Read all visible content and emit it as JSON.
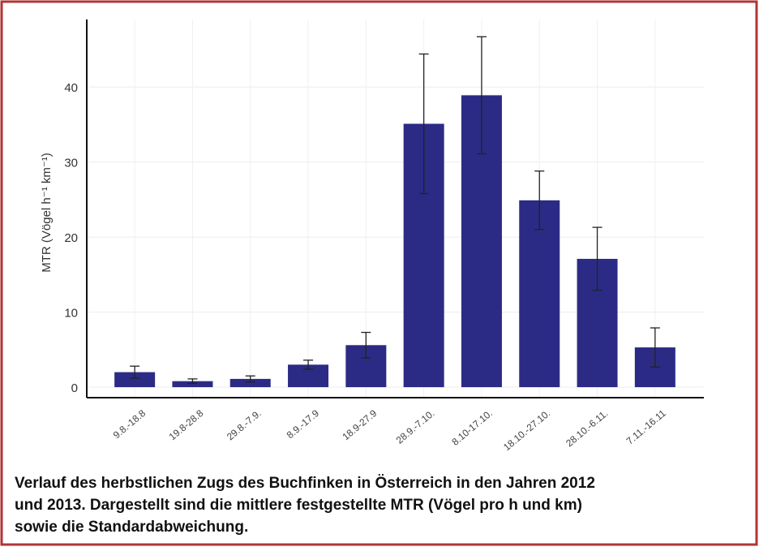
{
  "chart_data": {
    "type": "bar",
    "y_label": "MTR (Vögel h⁻¹ km⁻¹)",
    "categories": [
      "9.8.-18.8",
      "19.8-28.8",
      "29.8.-7.9.",
      "8.9.-17.9",
      "18.9-27.9",
      "28.9.-7.10.",
      "8.10-17.10.",
      "18.10.-27.10.",
      "28.10.-6.11.",
      "7.11.-16.11"
    ],
    "values": [
      2.0,
      0.8,
      1.1,
      3.0,
      5.6,
      35.1,
      38.9,
      24.9,
      17.1,
      5.3
    ],
    "errors": [
      0.8,
      0.3,
      0.4,
      0.6,
      1.7,
      9.3,
      7.8,
      3.9,
      4.2,
      2.6
    ],
    "color": "#2b2b86",
    "ylim": [
      -1.4,
      49
    ],
    "yticks": [
      0,
      10,
      20,
      30,
      40
    ],
    "grid": true,
    "caption": [
      "Verlauf des herbstlichen Zugs des Buchfinken in Österreich in den Jahren 2012",
      "und 2013. Dargestellt sind die mittlere festgestellte MTR (Vögel pro h und km)",
      "sowie die Standardabweichung."
    ]
  }
}
